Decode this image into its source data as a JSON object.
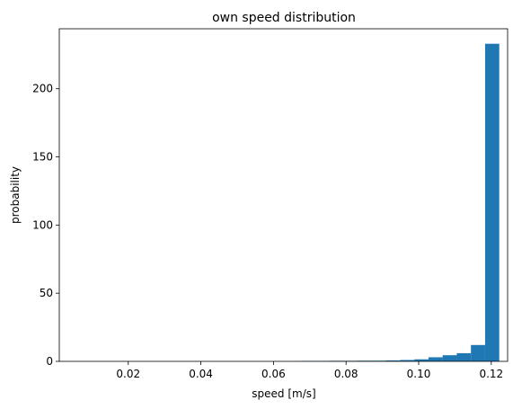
{
  "chart_data": {
    "type": "bar",
    "title": "own speed distribution",
    "xlabel": "speed [m/s]",
    "ylabel": "probability",
    "xlim": [
      0.001,
      0.1245
    ],
    "ylim": [
      0,
      244
    ],
    "xticks": [
      0.02,
      0.04,
      0.06,
      0.08,
      0.1,
      0.12
    ],
    "xtick_labels": [
      "0.02",
      "0.04",
      "0.06",
      "0.08",
      "0.10",
      "0.12"
    ],
    "yticks": [
      0,
      50,
      100,
      150,
      200
    ],
    "ytick_labels": [
      "0",
      "50",
      "100",
      "150",
      "200"
    ],
    "grid": false,
    "color": "#1f77b4",
    "bins": [
      {
        "x0": 0.0676,
        "x1": 0.0715,
        "value": 0.3
      },
      {
        "x0": 0.0715,
        "x1": 0.0754,
        "value": 0.3
      },
      {
        "x0": 0.0754,
        "x1": 0.0793,
        "value": 0.4
      },
      {
        "x0": 0.0793,
        "x1": 0.0832,
        "value": 0.4
      },
      {
        "x0": 0.0832,
        "x1": 0.0871,
        "value": 0.5
      },
      {
        "x0": 0.0871,
        "x1": 0.091,
        "value": 0.5
      },
      {
        "x0": 0.091,
        "x1": 0.0949,
        "value": 0.7
      },
      {
        "x0": 0.0949,
        "x1": 0.0988,
        "value": 1.0
      },
      {
        "x0": 0.0988,
        "x1": 0.1027,
        "value": 1.5
      },
      {
        "x0": 0.1027,
        "x1": 0.1066,
        "value": 3.0
      },
      {
        "x0": 0.1066,
        "x1": 0.1105,
        "value": 4.5
      },
      {
        "x0": 0.1105,
        "x1": 0.1144,
        "value": 6.0
      },
      {
        "x0": 0.1144,
        "x1": 0.1183,
        "value": 12.0
      },
      {
        "x0": 0.1183,
        "x1": 0.1222,
        "value": 233.0
      }
    ]
  }
}
